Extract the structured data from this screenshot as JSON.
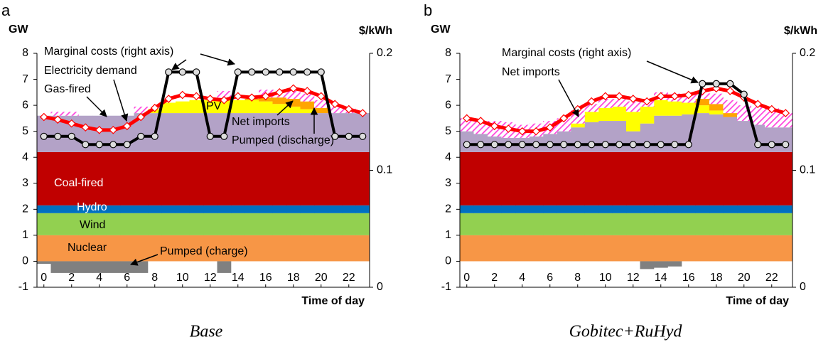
{
  "chart_data": [
    {
      "type": "stacked_step",
      "panel_label": "a",
      "y_label": "GW",
      "y2_label": "$/kWh",
      "x_label": "Time of day",
      "caption": "Base",
      "x": [
        0,
        1,
        2,
        3,
        4,
        5,
        6,
        7,
        8,
        9,
        10,
        11,
        12,
        13,
        14,
        15,
        16,
        17,
        18,
        19,
        20,
        21,
        22,
        23
      ],
      "xlim": [
        -0.5,
        23.5
      ],
      "xticks": [
        0,
        2,
        4,
        6,
        8,
        10,
        12,
        14,
        16,
        18,
        20,
        22
      ],
      "ylim": [
        -1,
        8
      ],
      "yticks": [
        -1,
        0,
        1,
        2,
        3,
        4,
        5,
        6,
        7,
        8
      ],
      "y2lim": [
        0,
        0.2
      ],
      "y2ticks": [
        0,
        0.1,
        0.2
      ],
      "series": [
        {
          "name": "Nuclear",
          "kind": "step",
          "color": "#f79646",
          "values": [
            1,
            1,
            1,
            1,
            1,
            1,
            1,
            1,
            1,
            1,
            1,
            1,
            1,
            1,
            1,
            1,
            1,
            1,
            1,
            1,
            1,
            1,
            1,
            1
          ]
        },
        {
          "name": "Wind",
          "kind": "step",
          "color": "#92d050",
          "values": [
            0.85,
            0.85,
            0.85,
            0.85,
            0.85,
            0.85,
            0.85,
            0.85,
            0.85,
            0.85,
            0.85,
            0.85,
            0.85,
            0.85,
            0.85,
            0.85,
            0.85,
            0.85,
            0.85,
            0.85,
            0.85,
            0.85,
            0.85,
            0.85
          ]
        },
        {
          "name": "Hydro",
          "kind": "step",
          "color": "#0070c0",
          "values": [
            0.3,
            0.3,
            0.3,
            0.3,
            0.3,
            0.3,
            0.3,
            0.3,
            0.3,
            0.3,
            0.3,
            0.3,
            0.3,
            0.3,
            0.3,
            0.3,
            0.3,
            0.3,
            0.3,
            0.3,
            0.3,
            0.3,
            0.3,
            0.3
          ]
        },
        {
          "name": "Coal-fired",
          "kind": "step",
          "color": "#c00000",
          "values": [
            2.05,
            2.05,
            2.05,
            2.05,
            2.05,
            2.05,
            2.05,
            2.05,
            2.05,
            2.05,
            2.05,
            2.05,
            2.05,
            2.05,
            2.05,
            2.05,
            2.05,
            2.05,
            2.05,
            2.05,
            2.05,
            2.05,
            2.05,
            2.05
          ]
        },
        {
          "name": "Gas-fired",
          "kind": "step",
          "color": "#b3a2c7",
          "values": [
            1.4,
            1.4,
            1.4,
            1.4,
            1.4,
            1.4,
            1.4,
            1.5,
            1.5,
            1.5,
            1.5,
            1.5,
            1.5,
            1.5,
            1.5,
            1.5,
            1.5,
            1.5,
            1.5,
            1.5,
            1.5,
            1.5,
            1.5,
            1.5
          ]
        },
        {
          "name": "PV",
          "kind": "step",
          "color": "#ffff00",
          "values": [
            0,
            0,
            0,
            0,
            0,
            0,
            0,
            0,
            0.15,
            0.4,
            0.45,
            0.5,
            0.5,
            0.5,
            0.5,
            0.5,
            0.45,
            0.35,
            0.25,
            0.15,
            0,
            0,
            0,
            0
          ]
        },
        {
          "name": "Pumped (discharge)",
          "kind": "step",
          "color": "#ffa500",
          "values": [
            0,
            0,
            0,
            0,
            0,
            0,
            0,
            0,
            0,
            0,
            0,
            0,
            0,
            0,
            0,
            0.05,
            0.15,
            0.25,
            0.3,
            0.3,
            0.2,
            0,
            0,
            0
          ]
        },
        {
          "name": "Net imports",
          "kind": "step",
          "color": "#ff44dd",
          "hatch": true,
          "values": [
            0,
            0.15,
            0.15,
            0,
            0,
            0,
            0,
            0.25,
            0,
            0,
            0,
            0,
            0,
            0.35,
            0,
            0,
            0.3,
            0.3,
            0.3,
            0.3,
            0.3,
            0.25,
            0.2,
            0
          ]
        },
        {
          "name": "Pumped (charge)",
          "kind": "step",
          "color": "#808080",
          "values": [
            -0.1,
            -0.45,
            -0.45,
            -0.45,
            -0.45,
            -0.45,
            -0.45,
            -0.45,
            0,
            0,
            0,
            0,
            0,
            -0.45,
            0,
            0,
            0,
            0,
            0,
            0,
            0,
            0,
            0,
            0
          ]
        },
        {
          "name": "Electricity demand",
          "kind": "line",
          "marker": "diamond",
          "color": "#ff0000",
          "values": [
            5.55,
            5.45,
            5.3,
            5.15,
            5.05,
            5.05,
            5.2,
            5.55,
            5.9,
            6.25,
            6.4,
            6.35,
            6.25,
            6.2,
            6.35,
            6.3,
            6.35,
            6.5,
            6.65,
            6.55,
            6.35,
            6.05,
            5.85,
            5.7
          ]
        },
        {
          "name": "Marginal costs (right axis)",
          "kind": "line",
          "marker": "circle",
          "axis": "y2",
          "color": "#000000",
          "values": [
            0.129,
            0.129,
            0.129,
            0.122,
            0.122,
            0.122,
            0.122,
            0.129,
            0.129,
            0.184,
            0.184,
            0.184,
            0.129,
            0.129,
            0.184,
            0.184,
            0.184,
            0.184,
            0.184,
            0.184,
            0.184,
            0.129,
            0.129,
            0.129
          ]
        }
      ]
    },
    {
      "type": "stacked_step",
      "panel_label": "b",
      "y_label": "GW",
      "y2_label": "$/kWh",
      "x_label": "Time of day",
      "caption": "Gobitec+RuHyd",
      "x": [
        0,
        1,
        2,
        3,
        4,
        5,
        6,
        7,
        8,
        9,
        10,
        11,
        12,
        13,
        14,
        15,
        16,
        17,
        18,
        19,
        20,
        21,
        22,
        23
      ],
      "xlim": [
        -0.5,
        23.5
      ],
      "xticks": [
        0,
        2,
        4,
        6,
        8,
        10,
        12,
        14,
        16,
        18,
        20,
        22
      ],
      "ylim": [
        -1,
        8
      ],
      "yticks": [
        -1,
        0,
        1,
        2,
        3,
        4,
        5,
        6,
        7,
        8
      ],
      "y2lim": [
        0,
        0.2
      ],
      "y2ticks": [
        0,
        0.1,
        0.2
      ],
      "series": [
        {
          "kind": "step",
          "color": "#f79646",
          "values": [
            1,
            1,
            1,
            1,
            1,
            1,
            1,
            1,
            1,
            1,
            1,
            1,
            1,
            1,
            1,
            1,
            1,
            1,
            1,
            1,
            1,
            1,
            1,
            1
          ]
        },
        {
          "kind": "step",
          "color": "#92d050",
          "values": [
            0.85,
            0.85,
            0.85,
            0.85,
            0.85,
            0.85,
            0.85,
            0.85,
            0.85,
            0.85,
            0.85,
            0.85,
            0.85,
            0.85,
            0.85,
            0.85,
            0.85,
            0.85,
            0.85,
            0.85,
            0.85,
            0.85,
            0.85,
            0.85
          ]
        },
        {
          "kind": "step",
          "color": "#0070c0",
          "values": [
            0.3,
            0.3,
            0.3,
            0.3,
            0.3,
            0.3,
            0.3,
            0.3,
            0.3,
            0.3,
            0.3,
            0.3,
            0.3,
            0.3,
            0.3,
            0.3,
            0.3,
            0.3,
            0.3,
            0.3,
            0.3,
            0.3,
            0.3,
            0.3
          ]
        },
        {
          "kind": "step",
          "color": "#c00000",
          "values": [
            2.05,
            2.05,
            2.05,
            2.05,
            2.05,
            2.05,
            2.05,
            2.05,
            2.05,
            2.05,
            2.05,
            2.05,
            2.05,
            2.05,
            2.05,
            2.05,
            2.05,
            2.05,
            2.05,
            2.05,
            2.05,
            2.05,
            2.05,
            2.05
          ]
        },
        {
          "kind": "step",
          "color": "#b3a2c7",
          "values": [
            0.8,
            0.7,
            0.6,
            0.55,
            0.55,
            0.6,
            0.7,
            0.8,
            0.95,
            1.15,
            1.2,
            1.2,
            0.8,
            1.1,
            1.4,
            1.4,
            1.45,
            1.5,
            1.45,
            1.35,
            1.2,
            1.05,
            0.95,
            0.95
          ]
        },
        {
          "kind": "step",
          "color": "#ffff00",
          "values": [
            0,
            0,
            0,
            0,
            0,
            0,
            0,
            0,
            0.15,
            0.4,
            0.5,
            0.55,
            0.75,
            0.65,
            0.6,
            0.55,
            0.45,
            0.3,
            0.15,
            0,
            0,
            0,
            0,
            0
          ]
        },
        {
          "kind": "step",
          "color": "#ffa500",
          "values": [
            0,
            0,
            0,
            0,
            0,
            0,
            0,
            0,
            0,
            0,
            0,
            0,
            0,
            0,
            0,
            0,
            0,
            0.25,
            0.25,
            0.15,
            0,
            0,
            0,
            0
          ]
        },
        {
          "name": "Net imports",
          "kind": "step",
          "color": "#ff44dd",
          "hatch": true,
          "values": [
            0.5,
            0.5,
            0.6,
            0.6,
            0.5,
            0.5,
            0.5,
            0.5,
            0.5,
            0.3,
            0.35,
            0.3,
            0.4,
            0.3,
            0.3,
            0.3,
            0.3,
            0.3,
            0.4,
            0.5,
            0.6,
            0.7,
            0.75,
            0.55
          ]
        },
        {
          "kind": "step",
          "color": "#808080",
          "values": [
            0,
            0,
            0,
            0,
            0,
            0,
            0,
            0,
            0,
            0,
            0,
            0,
            0,
            -0.3,
            -0.25,
            -0.2,
            0,
            0,
            0,
            0,
            0,
            0,
            0,
            0
          ]
        },
        {
          "kind": "line",
          "marker": "diamond",
          "color": "#ff0000",
          "values": [
            5.5,
            5.4,
            5.2,
            5.1,
            5.0,
            5.0,
            5.15,
            5.5,
            5.85,
            6.15,
            6.35,
            6.35,
            6.25,
            6.15,
            6.35,
            6.35,
            6.4,
            6.55,
            6.65,
            6.55,
            6.3,
            6.05,
            5.85,
            5.7
          ]
        },
        {
          "name": "Marginal costs (right axis)",
          "kind": "line",
          "marker": "circle",
          "axis": "y2",
          "color": "#000000",
          "values": [
            0.122,
            0.122,
            0.122,
            0.122,
            0.122,
            0.122,
            0.122,
            0.122,
            0.122,
            0.122,
            0.122,
            0.122,
            0.122,
            0.122,
            0.122,
            0.122,
            0.122,
            0.174,
            0.174,
            0.174,
            0.165,
            0.122,
            0.122,
            0.122
          ]
        }
      ]
    }
  ]
}
